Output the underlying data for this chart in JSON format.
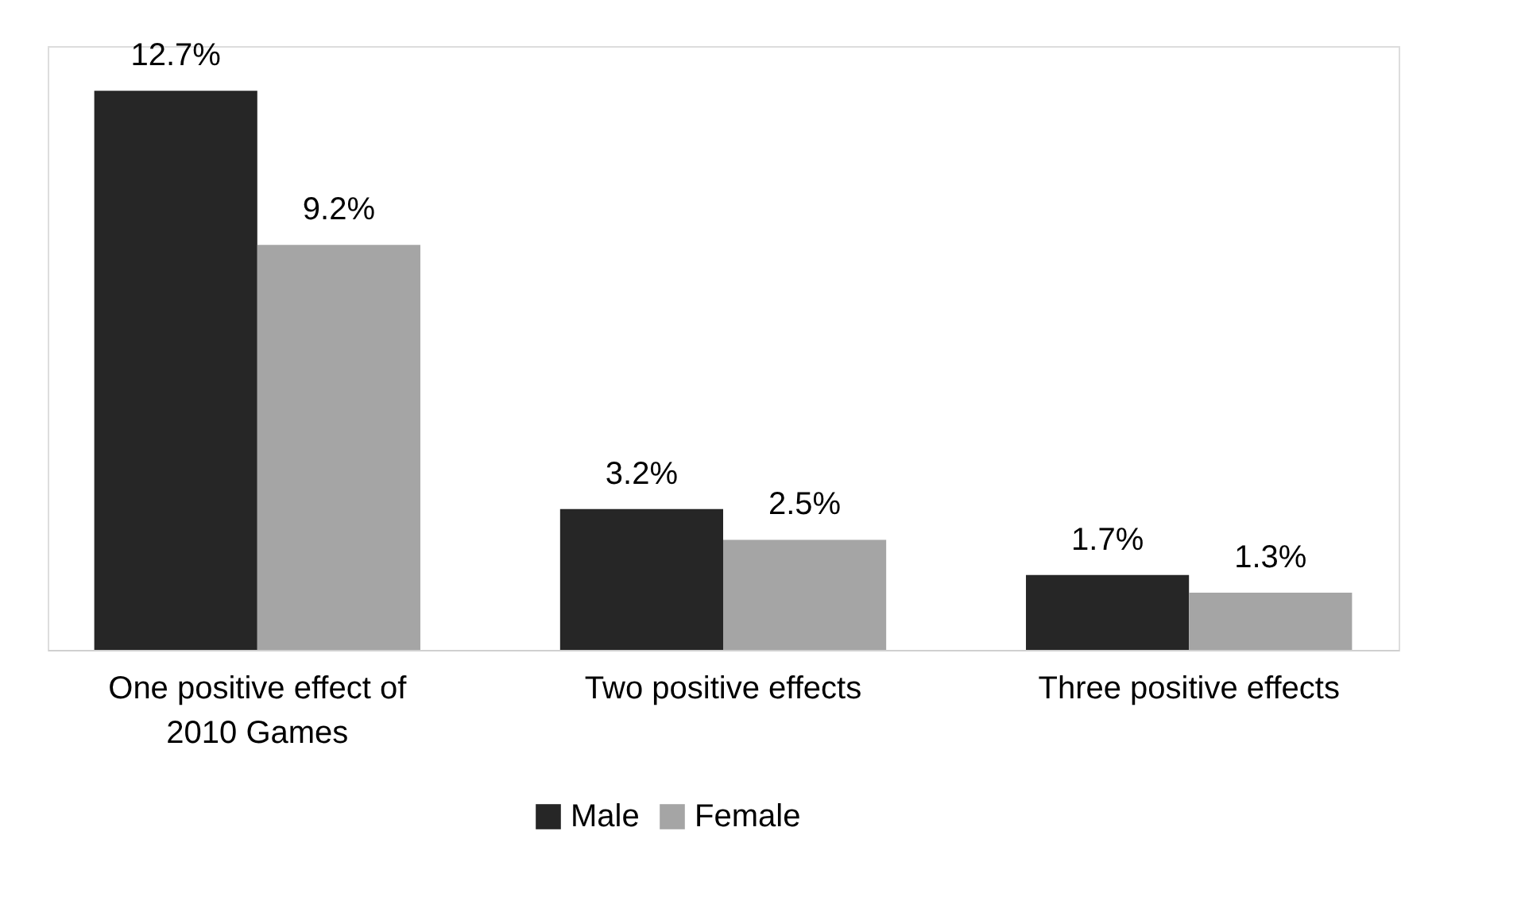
{
  "chart_data": {
    "type": "bar",
    "categories": [
      "One positive effect of 2010 Games",
      "Two positive effects",
      "Three positive effects"
    ],
    "series": [
      {
        "name": "Male",
        "color": "#262626",
        "values": [
          12.7,
          3.2,
          1.7
        ],
        "value_labels": [
          "12.7%",
          "3.2%",
          "1.7%"
        ]
      },
      {
        "name": "Female",
        "color": "#a5a5a5",
        "values": [
          9.2,
          2.5,
          1.3
        ],
        "value_labels": [
          "9.2%",
          "2.5%",
          "1.3%"
        ]
      }
    ],
    "legend": "bottom"
  }
}
